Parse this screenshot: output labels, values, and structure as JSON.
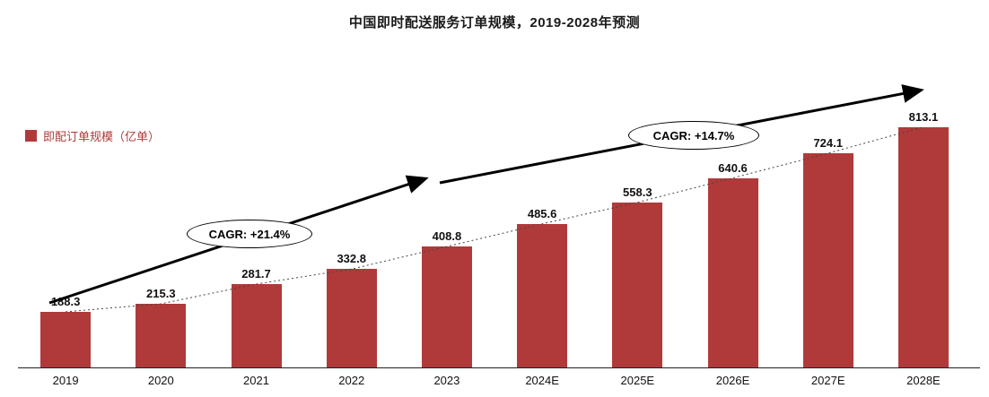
{
  "title": "中国即时配送服务订单规模，2019-2028年预测",
  "legend": {
    "label": "即配订单规模（亿单）"
  },
  "annotations": {
    "cagr_left": "CAGR: +21.4%",
    "cagr_right": "CAGR: +14.7%"
  },
  "colors": {
    "bar": "#b03a3a",
    "legend_text": "#b03a3a",
    "arrow": "#000000",
    "trend_dots": "#444444"
  },
  "chart_data": {
    "type": "bar",
    "title": "中国即时配送服务订单规模，2019-2028年预测",
    "categories": [
      "2019",
      "2020",
      "2021",
      "2022",
      "2023",
      "2024E",
      "2025E",
      "2026E",
      "2027E",
      "2028E"
    ],
    "values": [
      188.3,
      215.3,
      281.7,
      332.8,
      408.8,
      485.6,
      558.3,
      640.6,
      724.1,
      813.1
    ],
    "series_name": "即配订单规模（亿单）",
    "xlabel": "",
    "ylabel": "即配订单规模（亿单）",
    "ylim": [
      0,
      900
    ],
    "grid": false,
    "legend_position": "left",
    "bar_color": "#b03a3a",
    "annotations": [
      "CAGR: +21.4%",
      "CAGR: +14.7%"
    ]
  }
}
